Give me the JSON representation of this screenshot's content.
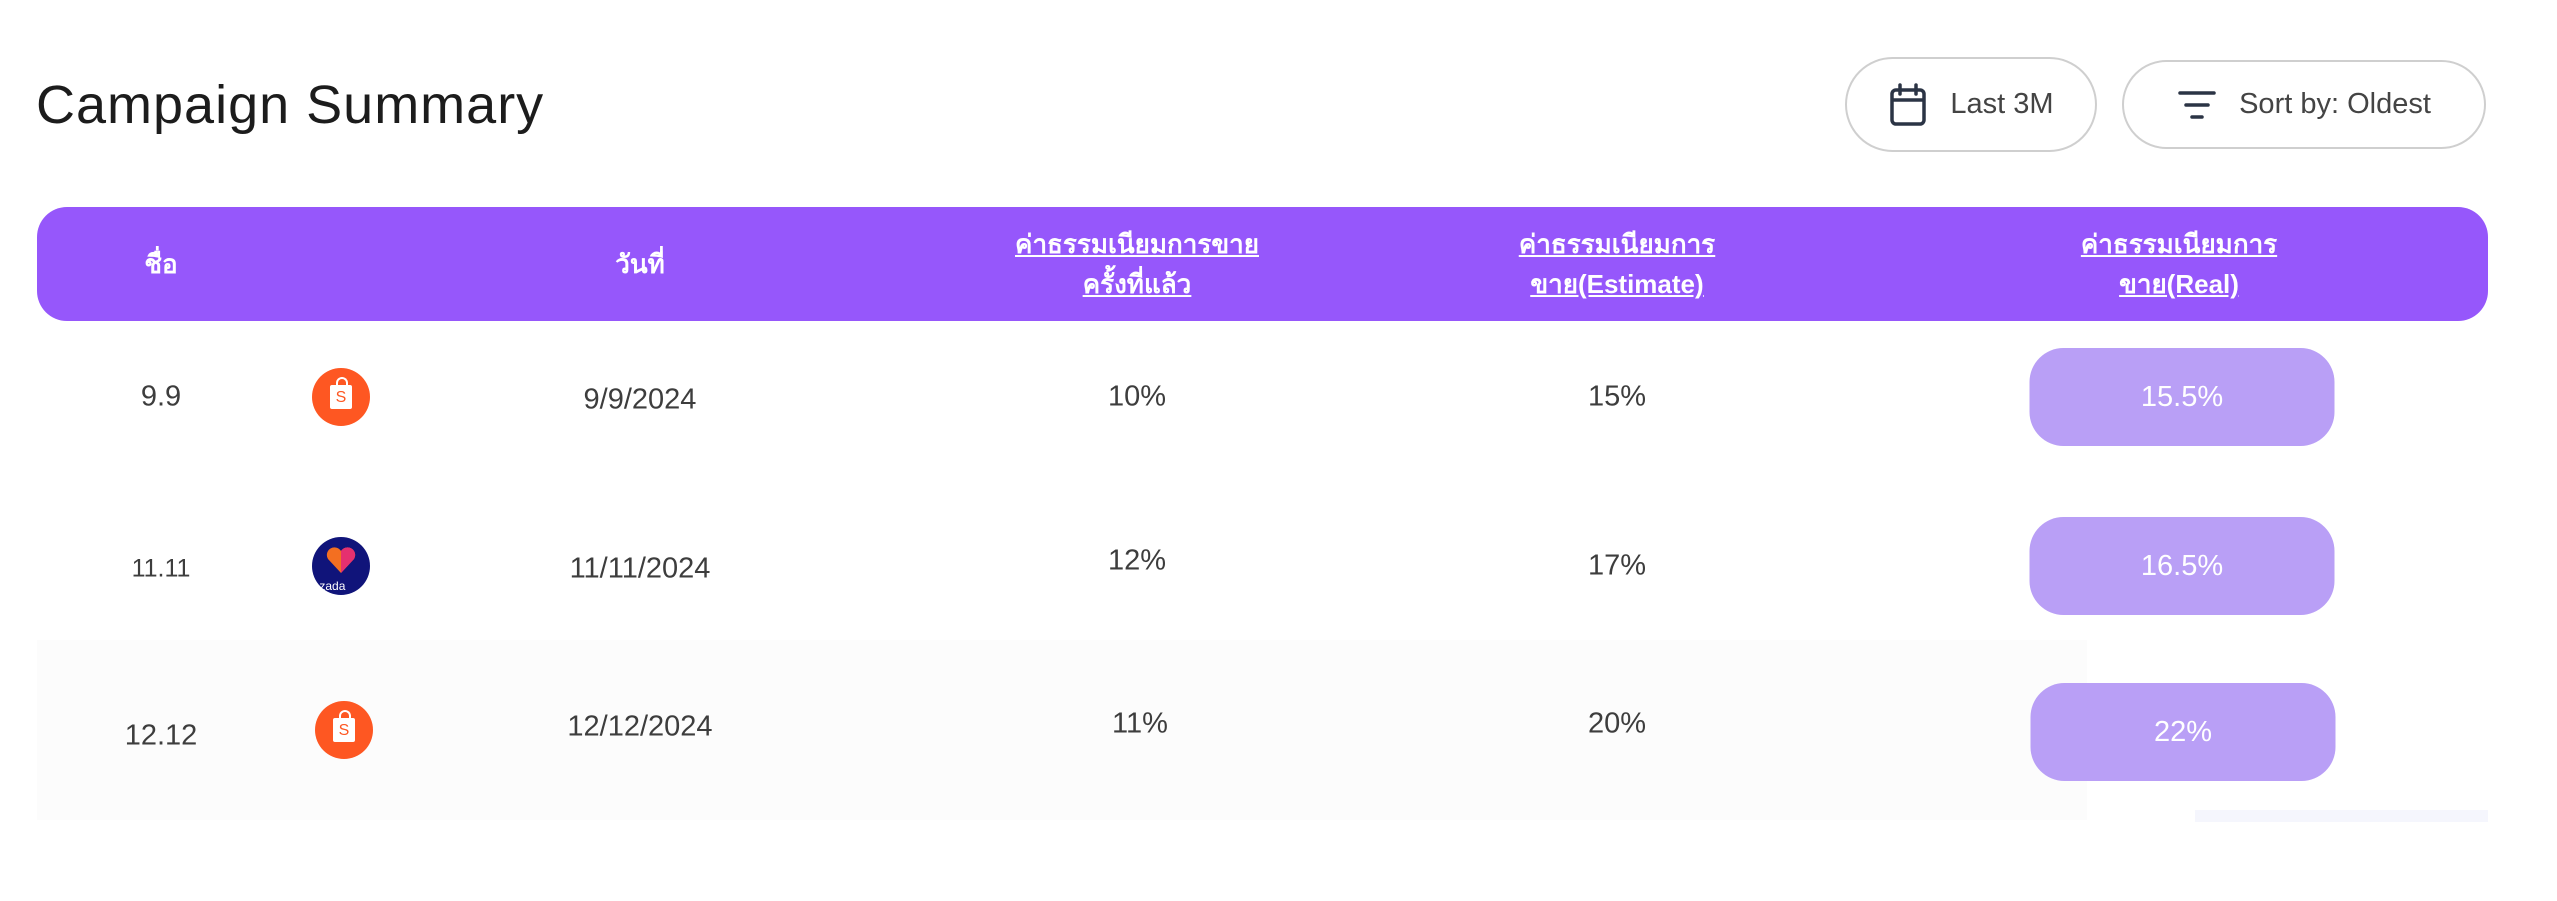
{
  "page": {
    "title": "Campaign Summary"
  },
  "toolbar": {
    "date_filter_label": "Last 3M",
    "date_filter_icon": "calendar-icon",
    "sort_label": "Sort by: Oldest",
    "sort_icon": "filter-lines-icon"
  },
  "table": {
    "headers": {
      "name": "ชื่อ",
      "date": "วันที่",
      "last_fee_line1": "ค่าธรรมเนียมการขาย",
      "last_fee_line2": "ครั้งที่แล้ว",
      "estimate_fee_line1": "ค่าธรรมเนียมการ",
      "estimate_fee_line2": "ขาย(Estimate)",
      "real_fee": "ค่าธรรมเนียมการขาย(Real)"
    },
    "rows": [
      {
        "name": "9.9",
        "platform": "shopee",
        "date": "9/9/2024",
        "last_fee": "10%",
        "estimate_fee": "15%",
        "real_fee": "15.5%"
      },
      {
        "name": "11.11",
        "platform": "lazada",
        "platform_text": "lazada",
        "date": "11/11/2024",
        "last_fee": "12%",
        "estimate_fee": "17%",
        "real_fee": "16.5%"
      },
      {
        "name": "12.12",
        "platform": "shopee",
        "date": "12/12/2024",
        "last_fee": "11%",
        "estimate_fee": "20%",
        "real_fee": "22%"
      }
    ]
  },
  "colors": {
    "header": "#9657fb",
    "pill": "#b99ff6",
    "shopee": "#fe5722",
    "lazada": "#10147a"
  }
}
